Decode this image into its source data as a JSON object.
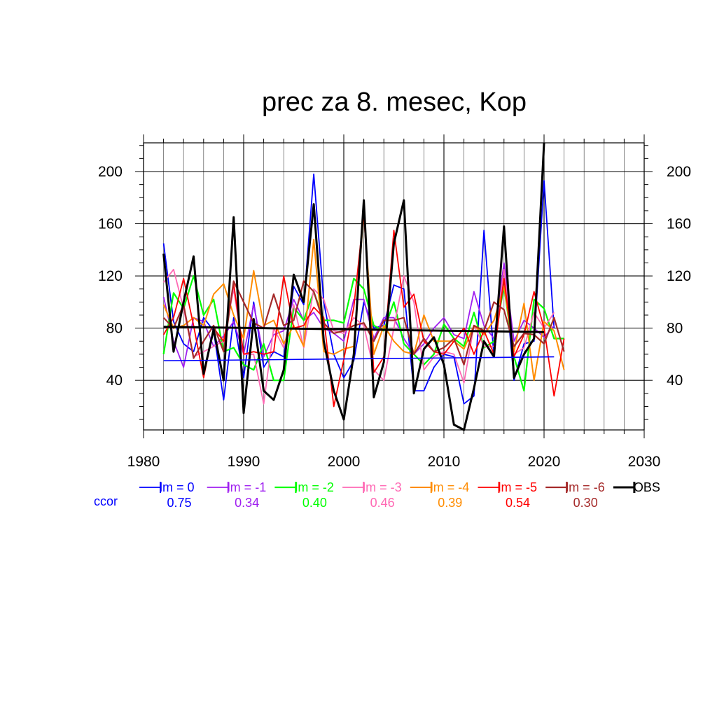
{
  "chart_data": {
    "type": "line",
    "title": "prec za 8. mesec, Kop",
    "xlabel": "",
    "ylabel": "",
    "xlim": [
      1980,
      2030
    ],
    "ylim": [
      2,
      222
    ],
    "x_ticks": [
      1980,
      1990,
      2000,
      2010,
      2020,
      2030
    ],
    "y_ticks": [
      40,
      80,
      120,
      160,
      200
    ],
    "grid": true,
    "legend_position": "bottom",
    "ccor_label": "ccor",
    "ccor_color": "#0000ff",
    "series": [
      {
        "name": "lm = 0",
        "ccor": "0.75",
        "color": "#0000ff",
        "stroke": 1.8,
        "x": [
          1982,
          1983,
          1984,
          1985,
          1986,
          1987,
          1988,
          1989,
          1990,
          1991,
          1992,
          1993,
          1994,
          1995,
          1996,
          1997,
          1998,
          1999,
          2000,
          2001,
          2002,
          2003,
          2004,
          2005,
          2006,
          2007,
          2008,
          2009,
          2010,
          2011,
          2012,
          2013,
          2014,
          2015,
          2016,
          2017,
          2018,
          2019,
          2020,
          2021
        ],
        "y": [
          145,
          85,
          68,
          62,
          88,
          78,
          25,
          88,
          42,
          100,
          50,
          62,
          58,
          112,
          98,
          198,
          100,
          60,
          42,
          55,
          100,
          80,
          82,
          113,
          110,
          32,
          32,
          50,
          60,
          58,
          22,
          28,
          155,
          58,
          127,
          40,
          68,
          70,
          193,
          80
        ],
        "trend": [
          55,
          58
        ]
      },
      {
        "name": "lm = -1",
        "ccor": "0.34",
        "color": "#a020f0",
        "stroke": 1.8,
        "x": [
          1982,
          1983,
          1984,
          1985,
          1986,
          1987,
          1988,
          1989,
          1990,
          1991,
          1992,
          1993,
          1994,
          1995,
          1996,
          1997,
          1998,
          1999,
          2000,
          2001,
          2002,
          2003,
          2004,
          2005,
          2006,
          2007,
          2008,
          2009,
          2010,
          2011,
          2012,
          2013,
          2014,
          2015,
          2016,
          2017,
          2018,
          2019,
          2020,
          2021
        ],
        "y": [
          104,
          70,
          50,
          88,
          85,
          66,
          74,
          85,
          60,
          98,
          58,
          75,
          78,
          102,
          86,
          92,
          80,
          76,
          70,
          102,
          102,
          72,
          88,
          88,
          72,
          60,
          68,
          80,
          88,
          75,
          72,
          108,
          82,
          72,
          130,
          70,
          86,
          80,
          73,
          82
        ]
      },
      {
        "name": "lm = -2",
        "ccor": "0.40",
        "color": "#00ff00",
        "stroke": 2.2,
        "x": [
          1982,
          1983,
          1984,
          1985,
          1986,
          1987,
          1988,
          1989,
          1990,
          1991,
          1992,
          1993,
          1994,
          1995,
          1996,
          1997,
          1998,
          1999,
          2000,
          2001,
          2002,
          2003,
          2004,
          2005,
          2006,
          2007,
          2008,
          2009,
          2010,
          2011,
          2012,
          2013,
          2014,
          2015,
          2016,
          2017,
          2018,
          2019,
          2020,
          2021,
          2022
        ],
        "y": [
          60,
          107,
          95,
          120,
          90,
          102,
          62,
          65,
          52,
          48,
          68,
          40,
          40,
          96,
          86,
          108,
          86,
          86,
          84,
          118,
          110,
          82,
          78,
          100,
          68,
          60,
          52,
          60,
          83,
          72,
          66,
          92,
          65,
          70,
          112,
          58,
          32,
          102,
          95,
          72,
          72
        ]
      },
      {
        "name": "lm = -3",
        "ccor": "0.46",
        "color": "#ff69b4",
        "stroke": 1.8,
        "x": [
          1982,
          1983,
          1984,
          1985,
          1986,
          1987,
          1988,
          1989,
          1990,
          1991,
          1992,
          1993,
          1994,
          1995,
          1996,
          1997,
          1998,
          1999,
          2000,
          2001,
          2002,
          2003,
          2004,
          2005,
          2006,
          2007,
          2008,
          2009,
          2010,
          2011,
          2012,
          2013,
          2014,
          2015,
          2016,
          2017,
          2018,
          2019,
          2020,
          2021
        ],
        "y": [
          115,
          125,
          95,
          58,
          62,
          66,
          70,
          110,
          60,
          60,
          22,
          80,
          65,
          98,
          65,
          110,
          102,
          78,
          76,
          88,
          82,
          48,
          40,
          80,
          120,
          100,
          48,
          58,
          62,
          60,
          38,
          82,
          66,
          66,
          125,
          60,
          65,
          92,
          80,
          92
        ]
      },
      {
        "name": "lm = -4",
        "ccor": "0.39",
        "color": "#ff8c00",
        "stroke": 2.0,
        "x": [
          1982,
          1983,
          1984,
          1985,
          1986,
          1987,
          1988,
          1989,
          1990,
          1991,
          1992,
          1993,
          1994,
          1995,
          1996,
          1997,
          1998,
          1999,
          2000,
          2001,
          2002,
          2003,
          2004,
          2005,
          2006,
          2007,
          2008,
          2009,
          2010,
          2011,
          2012,
          2013,
          2014,
          2015,
          2016,
          2017,
          2018,
          2019,
          2020,
          2021,
          2022
        ],
        "y": [
          98,
          80,
          82,
          88,
          82,
          106,
          114,
          90,
          72,
          124,
          82,
          86,
          68,
          82,
          66,
          148,
          62,
          60,
          64,
          66,
          170,
          60,
          82,
          70,
          62,
          60,
          90,
          70,
          70,
          70,
          64,
          82,
          75,
          86,
          112,
          62,
          99,
          40,
          85,
          78,
          48
        ]
      },
      {
        "name": "lm = -5",
        "ccor": "0.54",
        "color": "#ff0000",
        "stroke": 1.8,
        "x": [
          1982,
          1983,
          1984,
          1985,
          1986,
          1987,
          1988,
          1989,
          1990,
          1991,
          1992,
          1993,
          1994,
          1995,
          1996,
          1997,
          1998,
          1999,
          2000,
          2001,
          2002,
          2003,
          2004,
          2005,
          2006,
          2007,
          2008,
          2009,
          2010,
          2011,
          2012,
          2013,
          2014,
          2015,
          2016,
          2017,
          2018,
          2019,
          2020,
          2021,
          2022
        ],
        "y": [
          75,
          88,
          118,
          82,
          42,
          80,
          70,
          114,
          60,
          62,
          60,
          62,
          120,
          80,
          82,
          96,
          88,
          20,
          56,
          96,
          168,
          46,
          58,
          155,
          96,
          106,
          70,
          62,
          60,
          70,
          80,
          60,
          78,
          60,
          118,
          58,
          75,
          108,
          80,
          28,
          72
        ]
      },
      {
        "name": "lm = -6",
        "ccor": "0.30",
        "color": "#a52a2a",
        "stroke": 2.2,
        "x": [
          1982,
          1983,
          1984,
          1985,
          1986,
          1987,
          1988,
          1989,
          1990,
          1991,
          1992,
          1993,
          1994,
          1995,
          1996,
          1997,
          1998,
          1999,
          2000,
          2001,
          2002,
          2003,
          2004,
          2005,
          2006,
          2007,
          2008,
          2009,
          2010,
          2011,
          2012,
          2013,
          2014,
          2015,
          2016,
          2017,
          2018,
          2019,
          2020,
          2021,
          2022
        ],
        "y": [
          88,
          80,
          98,
          57,
          70,
          82,
          62,
          116,
          100,
          84,
          80,
          106,
          82,
          86,
          116,
          108,
          84,
          76,
          78,
          82,
          84,
          70,
          86,
          86,
          88,
          60,
          72,
          62,
          65,
          72,
          52,
          82,
          78,
          100,
          94,
          66,
          76,
          75,
          68,
          88,
          62
        ]
      },
      {
        "name": "OBS",
        "ccor": "",
        "color": "#000000",
        "stroke": 3.0,
        "x": [
          1982,
          1983,
          1984,
          1985,
          1986,
          1987,
          1988,
          1989,
          1990,
          1991,
          1992,
          1993,
          1994,
          1995,
          1996,
          1997,
          1998,
          1999,
          2000,
          2001,
          2002,
          2003,
          2004,
          2005,
          2006,
          2007,
          2008,
          2009,
          2010,
          2011,
          2012,
          2013,
          2014,
          2015,
          2016,
          2017,
          2018,
          2019,
          2020
        ],
        "y": [
          137,
          62,
          100,
          135,
          45,
          79,
          40,
          165,
          15,
          87,
          32,
          25,
          48,
          121,
          100,
          175,
          70,
          32,
          10,
          60,
          178,
          27,
          54,
          145,
          178,
          30,
          64,
          73,
          52,
          6,
          2,
          34,
          70,
          58,
          158,
          42,
          60,
          72,
          222
        ],
        "trend": [
          81,
          77
        ]
      }
    ]
  }
}
